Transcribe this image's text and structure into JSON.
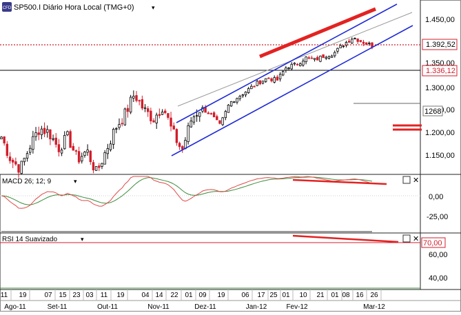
{
  "colors": {
    "up": "#000000",
    "down": "#d21d2b",
    "blue_channel": "#1f2bd6",
    "red_trend": "#e32222",
    "macd": "#e04848",
    "signal": "#3c8c3c",
    "rsi": "#333333",
    "grid": "#9a9a9a",
    "price_tag_bg": "#ffffff"
  },
  "header": {
    "icon_text": "CFD",
    "title": "SP500.I Diário Hora Local (TMG+0)",
    "dropdown_glyph": "▾",
    "close_glyph": "✕"
  },
  "price_axis": {
    "ticks": [
      "1.450,00",
      "1.400,00",
      "1.350,00",
      "1.300,00",
      "1.250,00",
      "1.200,00",
      "1.150,00"
    ],
    "last_price": "1.392,52",
    "level_a": "1.336,12",
    "level_b": "1268"
  },
  "macd": {
    "label": "MACD 26; 12; 9",
    "ticks": [
      "0,00",
      "-25,00"
    ]
  },
  "rsi": {
    "label": "RSI 14 Suavizado",
    "ticks": [
      "60,00",
      "40,00"
    ],
    "level": "70,00"
  },
  "x_axis": {
    "days": [
      "11",
      "19",
      "07",
      "15",
      "23",
      "03",
      "11",
      "19",
      "04",
      "14",
      "22",
      "01",
      "09",
      "19",
      "06",
      "17",
      "25",
      "01",
      "10",
      "21",
      "01",
      "08",
      "16",
      "26"
    ],
    "months": [
      "Ago-11",
      "Set-11",
      "Out-11",
      "Nov-11",
      "Dez-11",
      "Jan-12",
      "Fev-12",
      "Mar-12"
    ]
  },
  "chart_data": {
    "type": "candlestick",
    "series": [
      {
        "name": "SP500.I",
        "values_description_omitted": ""
      }
    ],
    "approx_closes_by_period": {
      "Ago-11": [
        1190,
        1140,
        1120,
        1170,
        1210
      ],
      "Set-11": [
        1200,
        1165,
        1190,
        1140,
        1160
      ],
      "Out-11": [
        1110,
        1160,
        1210,
        1240,
        1285
      ],
      "Nov-11": [
        1250,
        1230,
        1260,
        1200,
        1160
      ],
      "Dez-11": [
        1230,
        1255,
        1240,
        1215,
        1265
      ],
      "Jan-12": [
        1280,
        1295,
        1310,
        1320,
        1315
      ],
      "Fev-12": [
        1345,
        1350,
        1365,
        1360,
        1370
      ],
      "Mar-12": [
        1375,
        1395,
        1410,
        1400,
        1392.52
      ]
    },
    "y_range": [
      1125,
      1480
    ],
    "macd_range": [
      -40,
      30
    ],
    "rsi_range": [
      25,
      75
    ]
  }
}
